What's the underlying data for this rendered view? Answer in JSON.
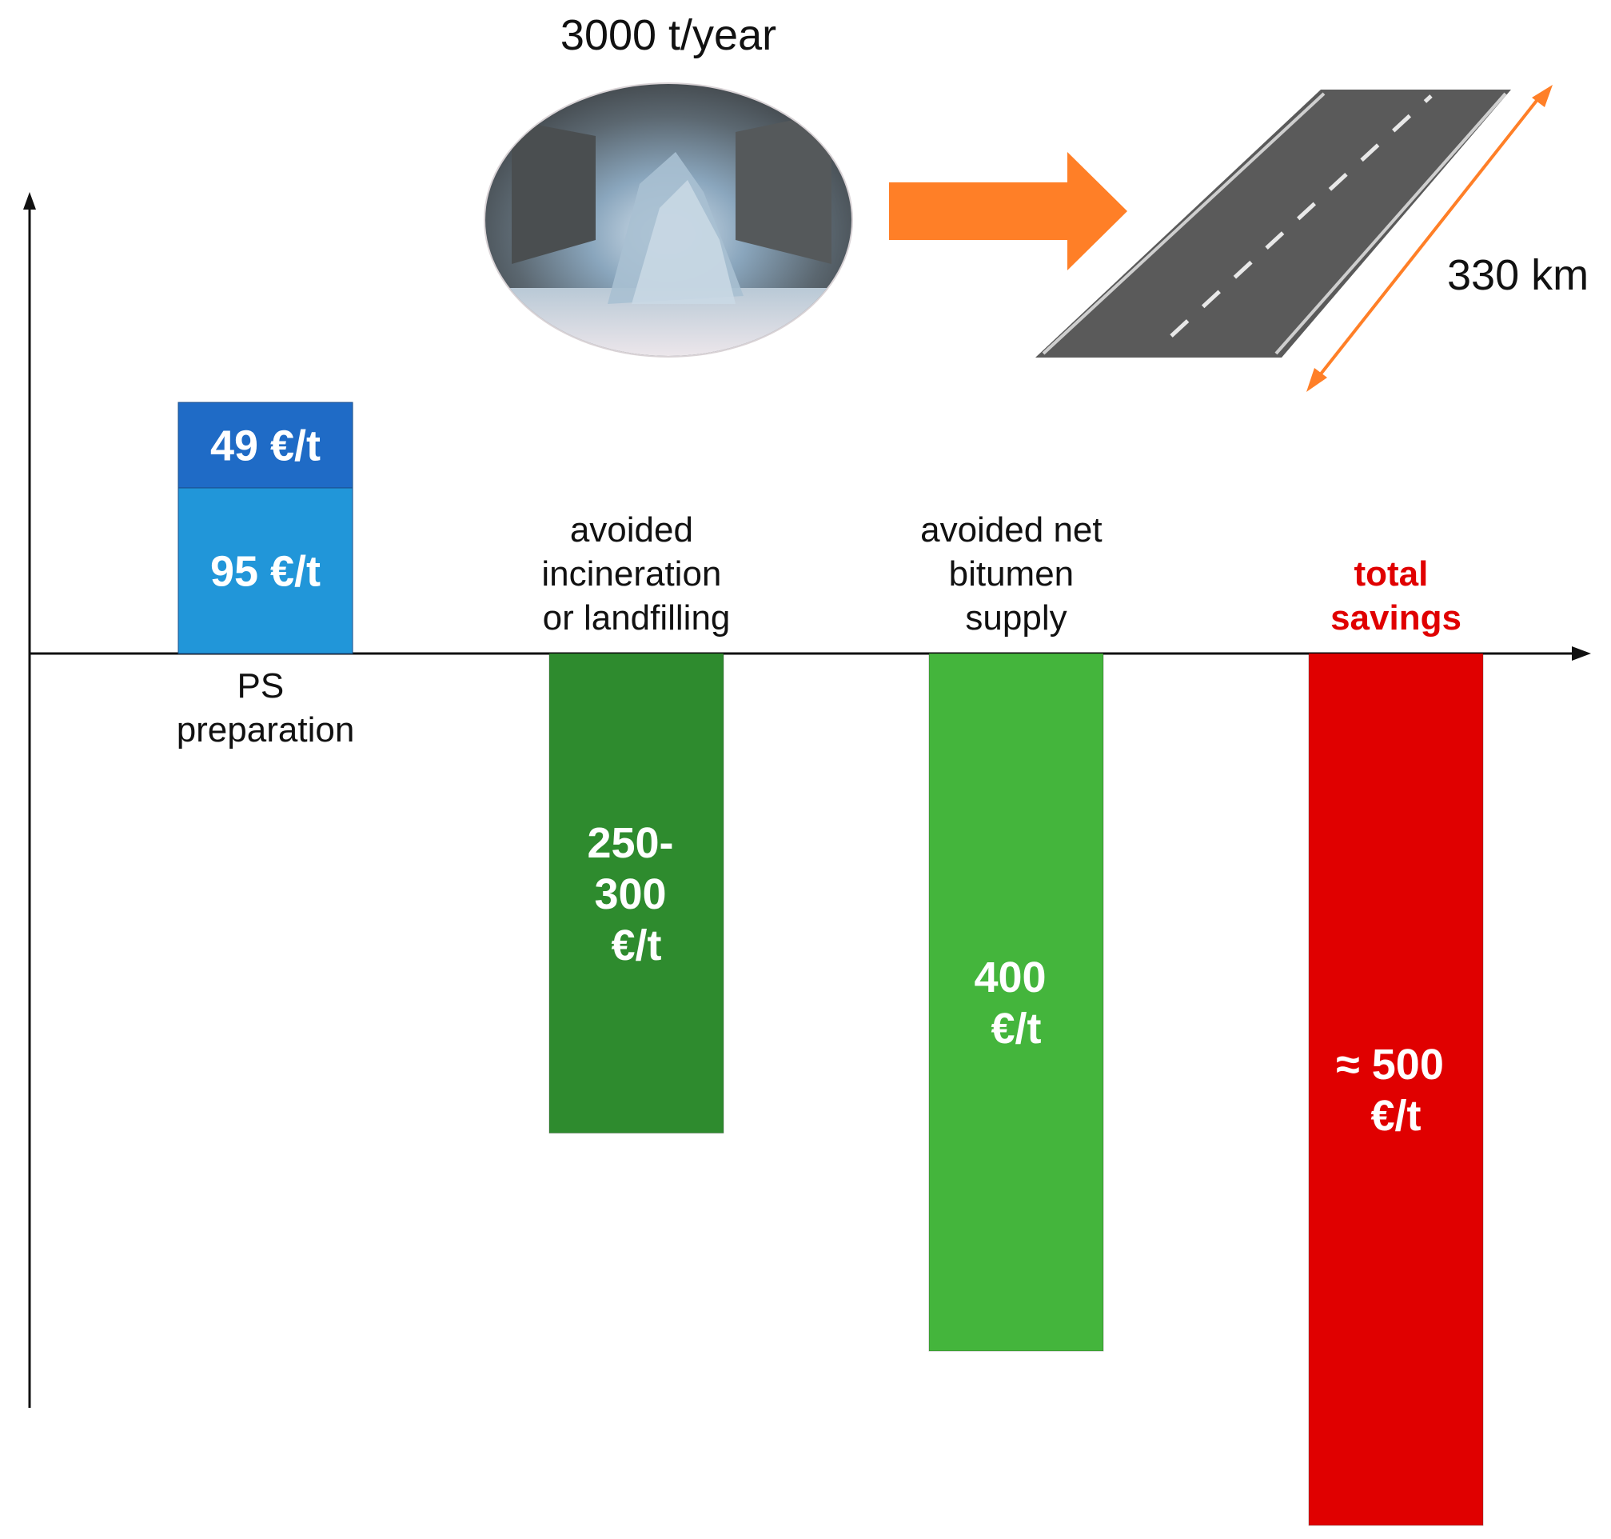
{
  "chart_data": {
    "type": "bar",
    "headline": "3000 t/year",
    "distance_label": "330 km",
    "axis_color": "#111111",
    "categories": [
      "PS preparation",
      "avoided incineration or landfilling",
      "avoided net bitumen supply",
      "total savings"
    ],
    "bars": [
      {
        "category": "PS preparation",
        "label_lines": [
          "PS",
          "preparation"
        ],
        "segments": [
          {
            "value": 95,
            "label": "95 €/t",
            "color": "#2196d9"
          },
          {
            "value": 49,
            "label": "49 €/t",
            "color": "#1f6bc6"
          }
        ]
      },
      {
        "category": "avoided incineration or landfilling",
        "label_lines": [
          "avoided",
          "incineration",
          "or landfilling"
        ],
        "value": -275,
        "range": [
          -300,
          -250
        ],
        "value_lines": [
          "250-",
          "300",
          "€/t"
        ],
        "color": "#2e8b2e"
      },
      {
        "category": "avoided net bitumen supply",
        "label_lines": [
          "avoided net",
          "bitumen",
          "supply"
        ],
        "value": -400,
        "value_lines": [
          "400",
          "€/t"
        ],
        "color": "#44b53c"
      },
      {
        "category": "total savings",
        "label_lines": [
          "total",
          "savings"
        ],
        "value": -500,
        "value_lines": [
          "≈ 500",
          "€/t"
        ],
        "color": "#e00000",
        "label_color": "#e00000"
      }
    ],
    "colors": {
      "arrow": "#ff7f27",
      "road": "#5a5a5a",
      "road_edge": "#cfcfcf",
      "road_dash": "#e8e8e8"
    }
  }
}
